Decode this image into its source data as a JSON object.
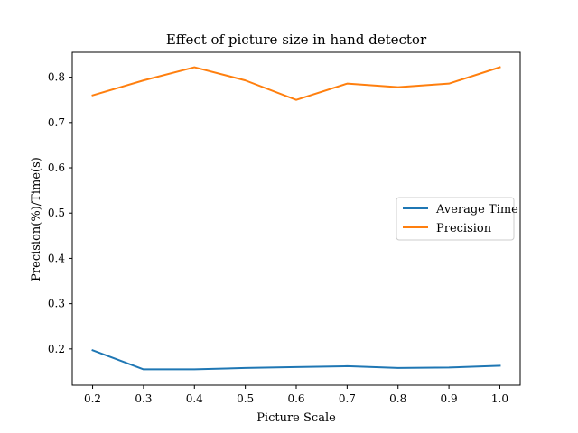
{
  "chart_data": {
    "type": "line",
    "title": "Effect of picture size in hand detector",
    "xlabel": "Picture Scale",
    "ylabel": "Precision(%)/Time(s)",
    "x": [
      0.2,
      0.3,
      0.4,
      0.5,
      0.6,
      0.7,
      0.8,
      0.9,
      1.0
    ],
    "x_ticks": [
      "0.2",
      "0.3",
      "0.4",
      "0.5",
      "0.6",
      "0.7",
      "0.8",
      "0.9",
      "1.0"
    ],
    "y_ticks": [
      "0.2",
      "0.3",
      "0.4",
      "0.5",
      "0.6",
      "0.7",
      "0.8"
    ],
    "xlim": [
      0.16,
      1.04
    ],
    "ylim": [
      0.12,
      0.855
    ],
    "series": [
      {
        "name": "Average Time",
        "color": "#1f77b4",
        "values": [
          0.197,
          0.155,
          0.155,
          0.158,
          0.16,
          0.162,
          0.158,
          0.159,
          0.163
        ]
      },
      {
        "name": "Precision",
        "color": "#ff7f0e",
        "values": [
          0.76,
          0.793,
          0.822,
          0.793,
          0.75,
          0.786,
          0.778,
          0.786,
          0.822
        ]
      }
    ],
    "legend_position": "center-right",
    "grid": false
  }
}
